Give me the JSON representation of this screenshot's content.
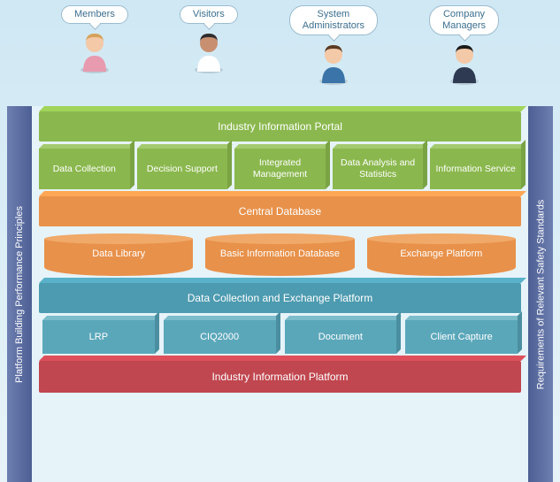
{
  "actors": [
    {
      "label": "Members",
      "skin": "#f4c9a7",
      "shirt": "#e89aae",
      "hair": "#d6a25a"
    },
    {
      "label": "Visitors",
      "skin": "#c89070",
      "shirt": "#ffffff",
      "hair": "#2d2d2d"
    },
    {
      "label": "System\nAdministrators",
      "skin": "#f4c9a7",
      "shirt": "#3a74a8",
      "hair": "#5a3b24"
    },
    {
      "label": "Company\nManagers",
      "skin": "#f4c9a7",
      "shirt": "#2d3a52",
      "hair": "#1a1a1a"
    }
  ],
  "pillar_left": "Platform Building Performance Principles",
  "pillar_right": "Requirements of Relevant Safety Standards",
  "portal": "Industry Information Portal",
  "green": [
    "Data Collection",
    "Decision Support",
    "Integrated Management",
    "Data Analysis and Statistics",
    "Information Service"
  ],
  "central_db": "Central Database",
  "cylinders": [
    "Data Library",
    "Basic Information Database",
    "Exchange Platform"
  ],
  "teal_bar": "Data Collection and Exchange Platform",
  "teal_boxes": [
    "LRP",
    "CIQ2000",
    "Document",
    "Client Capture"
  ],
  "red_bar": "Industry Information Platform",
  "colors": {
    "green": "#8bb84e",
    "orange": "#e8914a",
    "teal": "#4d9bb0",
    "teal_box": "#5ba7ba",
    "red": "#c0464f",
    "pillar": "#5c6fa6"
  }
}
